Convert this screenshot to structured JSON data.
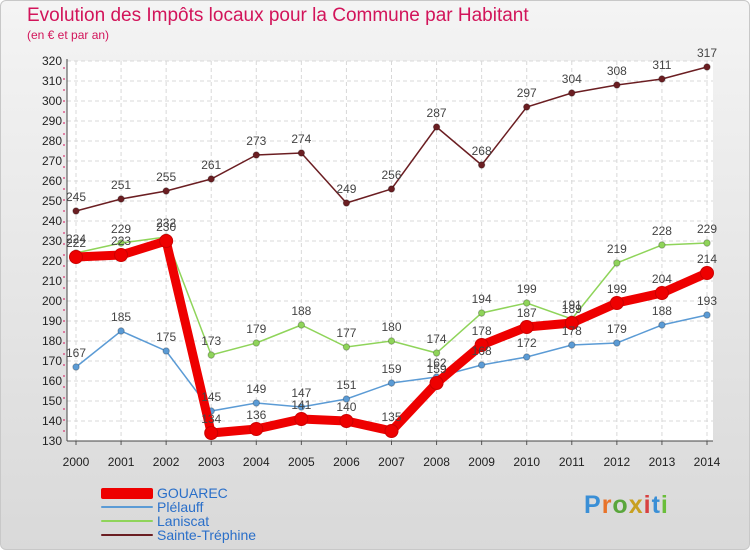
{
  "title": "Evolution des Impôts locaux pour la Commune par Habitant",
  "subtitle": "(en € et par an)",
  "logo": "Proxiti",
  "chart_data": {
    "type": "line",
    "title": "Evolution des Impôts locaux pour la Commune par Habitant",
    "subtitle": "(en € et par an)",
    "xlabel": "",
    "ylabel": "",
    "x": [
      2000,
      2001,
      2002,
      2003,
      2004,
      2005,
      2006,
      2007,
      2008,
      2009,
      2010,
      2011,
      2012,
      2013,
      2014
    ],
    "ylim": [
      130,
      320
    ],
    "yticks": [
      130,
      140,
      150,
      160,
      170,
      180,
      190,
      200,
      210,
      220,
      230,
      240,
      250,
      260,
      270,
      280,
      290,
      300,
      310,
      320
    ],
    "grid": true,
    "legend": "bottom-left",
    "series": [
      {
        "name": "Sainte-Tréphine",
        "color": "#6b1e22",
        "values": [
          245,
          251,
          255,
          261,
          273,
          274,
          249,
          256,
          287,
          268,
          297,
          304,
          308,
          311,
          317
        ]
      },
      {
        "name": "Laniscat",
        "color": "#8fd45a",
        "values": [
          224,
          229,
          232,
          173,
          179,
          188,
          177,
          180,
          174,
          194,
          199,
          191,
          219,
          228,
          229
        ]
      },
      {
        "name": "Plélauff",
        "color": "#5b9bd5",
        "values": [
          167,
          185,
          175,
          145,
          149,
          147,
          151,
          159,
          162,
          168,
          172,
          178,
          179,
          188,
          193
        ]
      },
      {
        "name": "GOUAREC",
        "color": "#ee0000",
        "values": [
          222,
          223,
          230,
          134,
          136,
          141,
          140,
          135,
          159,
          178,
          187,
          189,
          199,
          204,
          214
        ]
      }
    ],
    "legend_order": [
      "GOUAREC",
      "Plélauff",
      "Laniscat",
      "Sainte-Tréphine"
    ]
  }
}
